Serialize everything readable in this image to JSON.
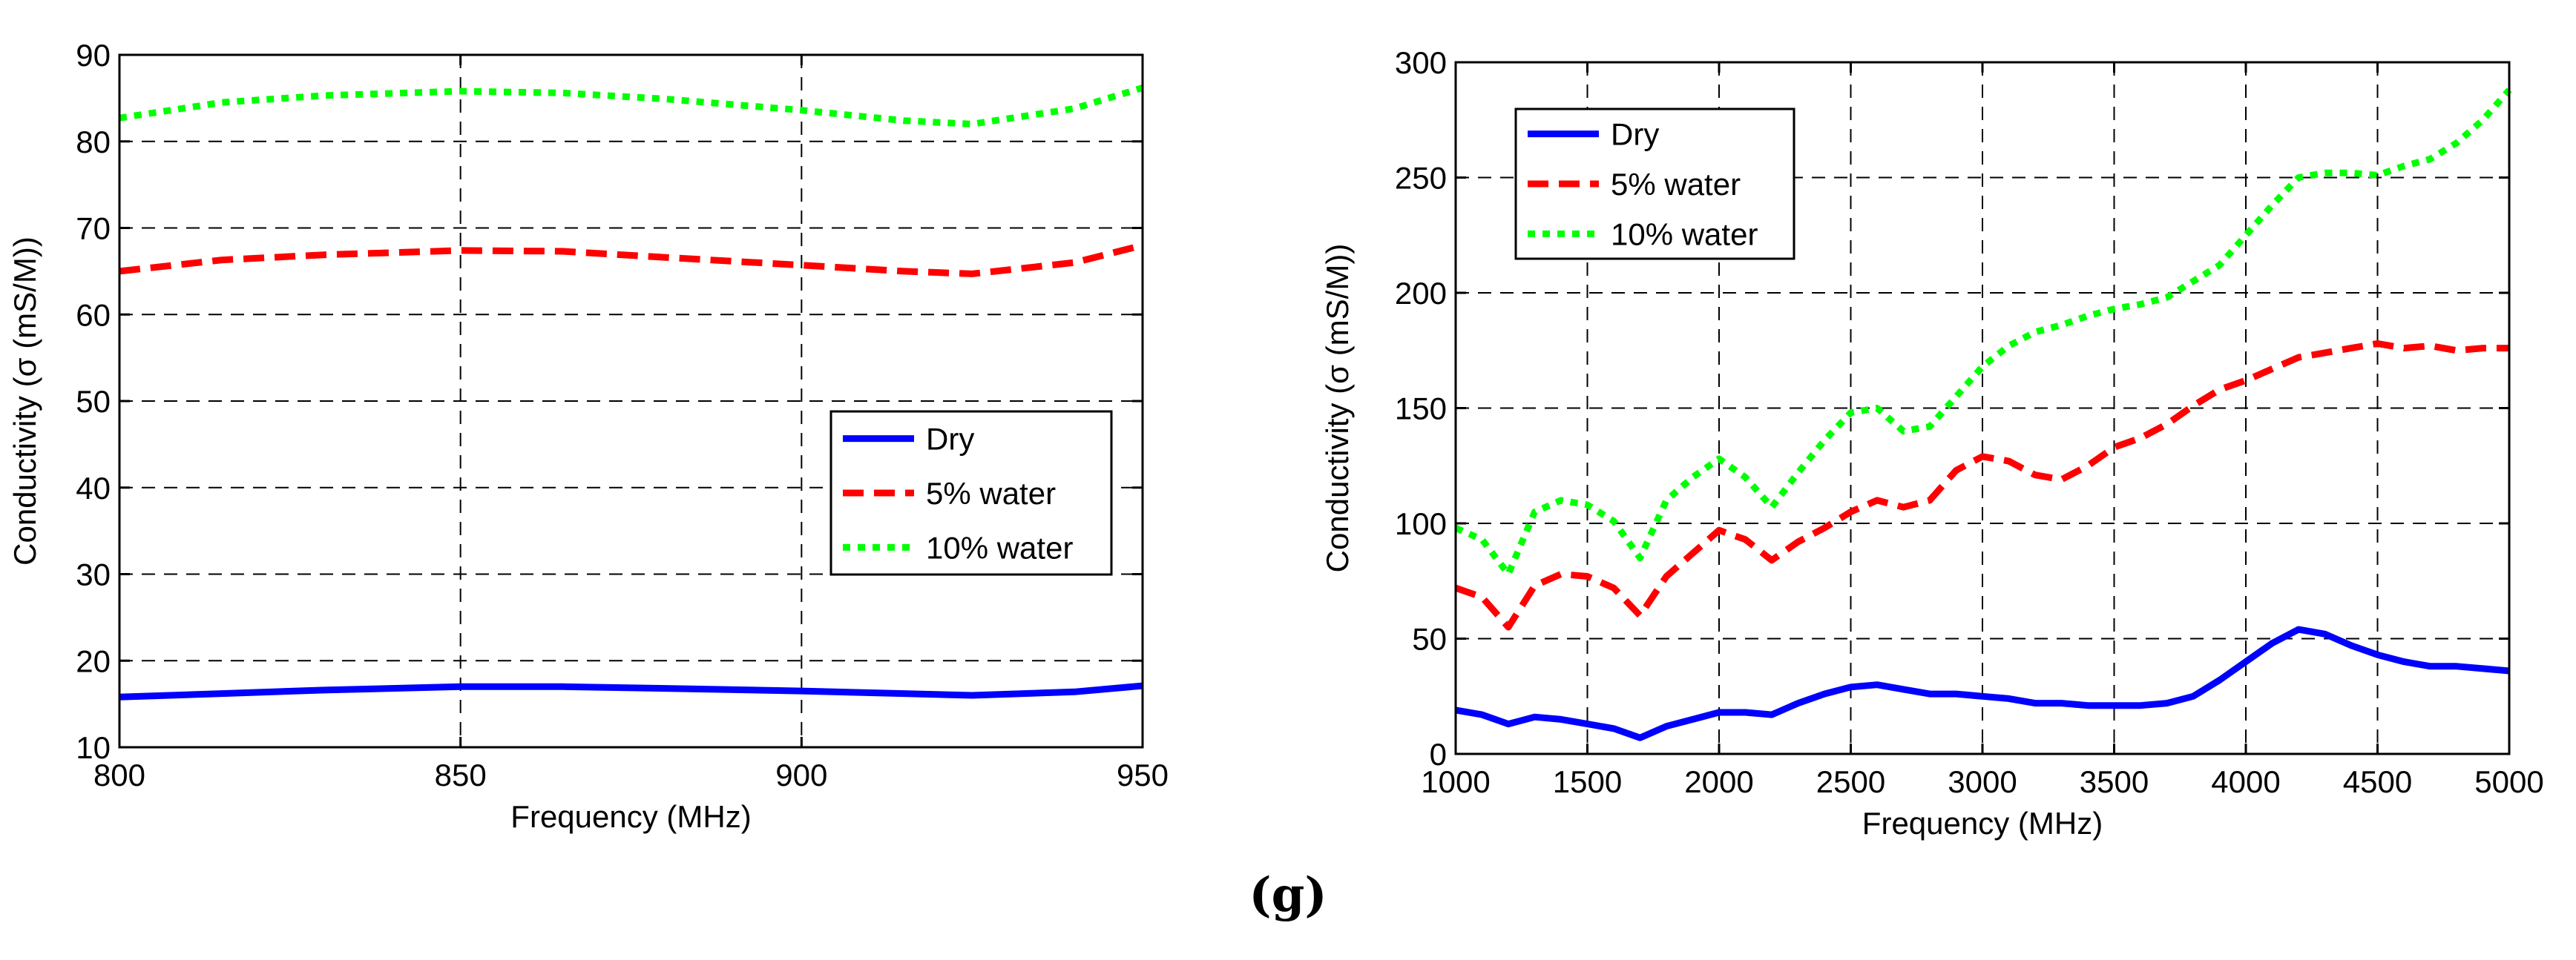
{
  "caption": "(g)",
  "colors": {
    "dry": "#0000ff",
    "water5": "#ff0000",
    "water10": "#00ff00"
  },
  "chart_data": [
    {
      "type": "line",
      "title": "",
      "xlabel": "Frequency (MHz)",
      "ylabel": "Conductivity (σ (mS/M))",
      "xlim": [
        800,
        950
      ],
      "ylim": [
        10,
        90
      ],
      "xticks": [
        800,
        850,
        900,
        950
      ],
      "yticks": [
        10,
        20,
        30,
        40,
        50,
        60,
        70,
        80,
        90
      ],
      "grid": true,
      "legend_position": "right",
      "series": [
        {
          "name": "Dry",
          "style": "solid",
          "x": [
            800,
            815,
            830,
            850,
            865,
            880,
            900,
            915,
            925,
            940,
            950
          ],
          "y": [
            15.8,
            16.2,
            16.6,
            17.0,
            17.0,
            16.8,
            16.5,
            16.2,
            16.0,
            16.4,
            17.1
          ]
        },
        {
          "name": "5% water",
          "style": "dashed",
          "x": [
            800,
            815,
            830,
            850,
            865,
            880,
            900,
            915,
            925,
            940,
            950
          ],
          "y": [
            65,
            66.3,
            66.9,
            67.4,
            67.3,
            66.6,
            65.7,
            65.0,
            64.7,
            66.0,
            68.0
          ]
        },
        {
          "name": "10% water",
          "style": "dotted",
          "x": [
            800,
            815,
            830,
            850,
            865,
            880,
            900,
            915,
            925,
            940,
            950
          ],
          "y": [
            82.7,
            84.5,
            85.3,
            85.8,
            85.6,
            84.9,
            83.6,
            82.4,
            82.0,
            83.8,
            86.2
          ]
        }
      ]
    },
    {
      "type": "line",
      "title": "",
      "xlabel": "Frequency (MHz)",
      "ylabel": "Conductivity (σ (mS/M))",
      "xlim": [
        1000,
        5000
      ],
      "ylim": [
        0,
        300
      ],
      "xticks": [
        1000,
        1500,
        2000,
        2500,
        3000,
        3500,
        4000,
        4500,
        5000
      ],
      "yticks": [
        0,
        50,
        100,
        150,
        200,
        250,
        300
      ],
      "grid": true,
      "legend_position": "top-left",
      "series": [
        {
          "name": "Dry",
          "style": "solid",
          "x": [
            1000,
            1100,
            1200,
            1300,
            1400,
            1500,
            1600,
            1700,
            1800,
            1900,
            2000,
            2100,
            2200,
            2300,
            2400,
            2500,
            2600,
            2700,
            2800,
            2900,
            3000,
            3100,
            3200,
            3300,
            3400,
            3500,
            3600,
            3700,
            3800,
            3900,
            4000,
            4100,
            4200,
            4300,
            4400,
            4500,
            4600,
            4700,
            4800,
            4900,
            5000
          ],
          "y": [
            19,
            17,
            13,
            16,
            15,
            13,
            11,
            7,
            12,
            15,
            18,
            18,
            17,
            22,
            26,
            29,
            30,
            28,
            26,
            26,
            25,
            24,
            22,
            22,
            21,
            21,
            21,
            22,
            25,
            32,
            40,
            48,
            54,
            52,
            47,
            43,
            40,
            38,
            38,
            37,
            36
          ]
        },
        {
          "name": "5% water",
          "style": "dashed",
          "x": [
            1000,
            1100,
            1200,
            1300,
            1400,
            1500,
            1600,
            1700,
            1800,
            1900,
            2000,
            2100,
            2200,
            2300,
            2400,
            2500,
            2600,
            2700,
            2800,
            2900,
            3000,
            3100,
            3200,
            3300,
            3400,
            3500,
            3600,
            3700,
            3800,
            3900,
            4000,
            4100,
            4200,
            4300,
            4400,
            4500,
            4600,
            4700,
            4800,
            4900,
            5000
          ],
          "y": [
            72,
            68,
            55,
            73,
            78,
            77,
            72,
            60,
            77,
            87,
            97,
            93,
            84,
            92,
            98,
            105,
            110,
            107,
            110,
            123,
            129,
            127,
            121,
            119,
            125,
            133,
            137,
            143,
            151,
            158,
            162,
            167,
            172,
            174,
            176,
            178,
            176,
            177,
            175,
            176,
            176
          ]
        },
        {
          "name": "10% water",
          "style": "dotted",
          "x": [
            1000,
            1100,
            1200,
            1300,
            1400,
            1500,
            1600,
            1700,
            1800,
            1900,
            2000,
            2100,
            2200,
            2300,
            2400,
            2500,
            2600,
            2700,
            2800,
            2900,
            3000,
            3100,
            3200,
            3300,
            3400,
            3500,
            3600,
            3700,
            3800,
            3900,
            4000,
            4100,
            4200,
            4300,
            4400,
            4500,
            4600,
            4700,
            4800,
            4900,
            5000
          ],
          "y": [
            98,
            93,
            78,
            105,
            110,
            108,
            101,
            85,
            110,
            120,
            128,
            120,
            107,
            122,
            136,
            148,
            150,
            140,
            142,
            155,
            168,
            177,
            183,
            186,
            190,
            193,
            195,
            198,
            205,
            212,
            225,
            238,
            250,
            252,
            252,
            251,
            255,
            258,
            265,
            275,
            288
          ]
        }
      ]
    }
  ]
}
